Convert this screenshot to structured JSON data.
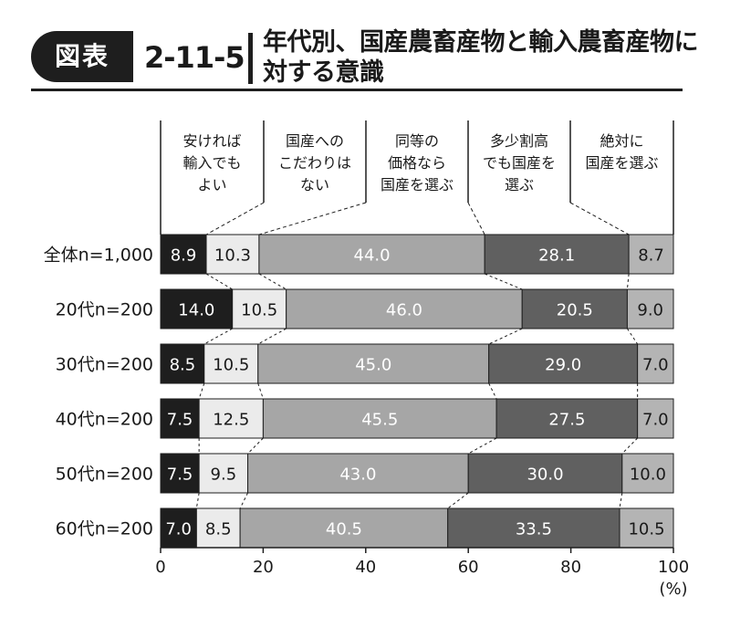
{
  "header": {
    "badge": "図表",
    "figure_number": "2-11-5",
    "title": "年代別、国産農畜産物と輸入農畜産物に対する意識"
  },
  "colors": {
    "seg1": "#1e1e1e",
    "seg2": "#ebebeb",
    "seg3": "#a6a6a6",
    "seg4": "#606060",
    "seg5": "#b4b4b4",
    "text_dark": "#1a1a1a",
    "text_light": "#ffffff"
  },
  "chart_data": {
    "type": "bar",
    "stacked": true,
    "orientation": "horizontal",
    "categories": [
      "全体n=1,000",
      "20代n=200",
      "30代n=200",
      "40代n=200",
      "50代n=200",
      "60代n=200"
    ],
    "series": [
      {
        "name": "安ければ輸入でもよい",
        "label_lines": [
          "安ければ",
          "輸入でも",
          "よい"
        ],
        "values": [
          8.9,
          14.0,
          8.5,
          7.5,
          7.5,
          7.0
        ]
      },
      {
        "name": "国産へのこだわりはない",
        "label_lines": [
          "国産への",
          "こだわりは",
          "ない"
        ],
        "values": [
          10.3,
          10.5,
          10.5,
          12.5,
          9.5,
          8.5
        ]
      },
      {
        "name": "同等の価格なら国産を選ぶ",
        "label_lines": [
          "同等の",
          "価格なら",
          "国産を選ぶ"
        ],
        "values": [
          44.0,
          46.0,
          45.0,
          45.5,
          43.0,
          40.5
        ]
      },
      {
        "name": "多少割高でも国産を選ぶ",
        "label_lines": [
          "多少割高",
          "でも国産を",
          "選ぶ"
        ],
        "values": [
          28.1,
          20.5,
          29.0,
          27.5,
          30.0,
          33.5
        ]
      },
      {
        "name": "絶対に国産を選ぶ",
        "label_lines": [
          "絶対に",
          "国産を選ぶ"
        ],
        "values": [
          8.7,
          9.0,
          7.0,
          7.0,
          10.0,
          10.5
        ]
      }
    ],
    "value_labels": [
      [
        "8.9",
        "10.3",
        "44.0",
        "28.1",
        "8.7"
      ],
      [
        "14.0",
        "10.5",
        "46.0",
        "20.5",
        "9.0"
      ],
      [
        "8.5",
        "10.5",
        "45.0",
        "29.0",
        "7.0"
      ],
      [
        "7.5",
        "12.5",
        "45.5",
        "27.5",
        "7.0"
      ],
      [
        "7.5",
        "9.5",
        "43.0",
        "30.0",
        "10.0"
      ],
      [
        "7.0",
        "8.5",
        "40.5",
        "33.5",
        "10.5"
      ]
    ],
    "xlim": [
      0,
      100
    ],
    "xticks": [
      "0",
      "20",
      "40",
      "60",
      "80",
      "100"
    ],
    "xunit": "(%)",
    "legend_position": "top",
    "grid": false
  }
}
